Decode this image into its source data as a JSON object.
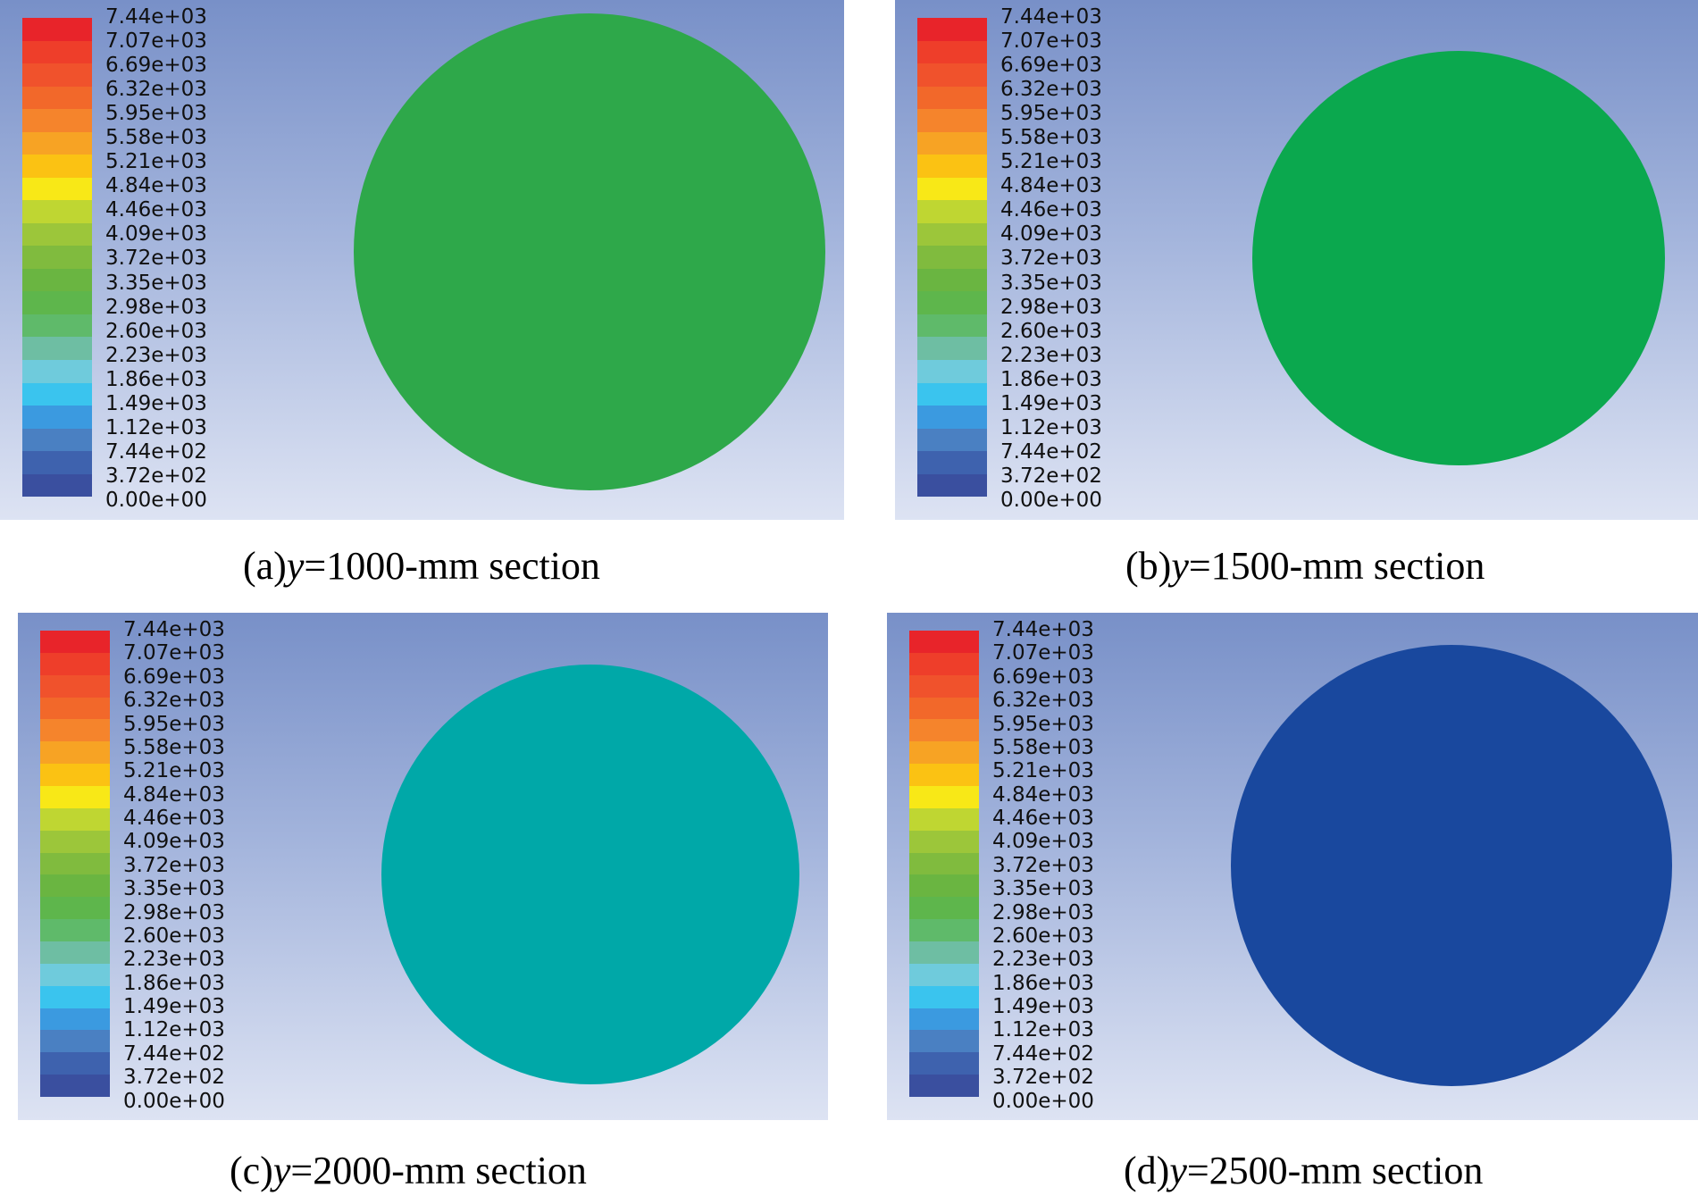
{
  "legend": {
    "labels": [
      "7.44e+03",
      "7.07e+03",
      "6.69e+03",
      "6.32e+03",
      "5.95e+03",
      "5.58e+03",
      "5.21e+03",
      "4.84e+03",
      "4.46e+03",
      "4.09e+03",
      "3.72e+03",
      "3.35e+03",
      "2.98e+03",
      "2.60e+03",
      "2.23e+03",
      "1.86e+03",
      "1.49e+03",
      "1.12e+03",
      "7.44e+02",
      "3.72e+02",
      "0.00e+00"
    ],
    "colors": [
      "#e8242a",
      "#ee3e2a",
      "#f0522c",
      "#f2682a",
      "#f5842c",
      "#f7a324",
      "#fbc213",
      "#f8e817",
      "#bfd632",
      "#9cc63a",
      "#80bb3e",
      "#6ab541",
      "#5eb64c",
      "#5fba6a",
      "#6ebea3",
      "#6fcbdc",
      "#3ac4ee",
      "#3b9ae0",
      "#4a80c2",
      "#3e62ae",
      "#3a4f9f"
    ]
  },
  "panels": [
    {
      "id": "a",
      "prefix": "(a)",
      "var": "y",
      "suffix": "=1000-mm section",
      "fill": "#2ea84a"
    },
    {
      "id": "b",
      "prefix": "(b)",
      "var": "y",
      "suffix": "=1500-mm section",
      "fill": "#0ba84e"
    },
    {
      "id": "c",
      "prefix": "(c)",
      "var": "y",
      "suffix": "=2000-mm section",
      "fill": "#00a8a8"
    },
    {
      "id": "d",
      "prefix": "(d)",
      "var": "y",
      "suffix": "=2500-mm section",
      "fill": "#19489e"
    }
  ]
}
